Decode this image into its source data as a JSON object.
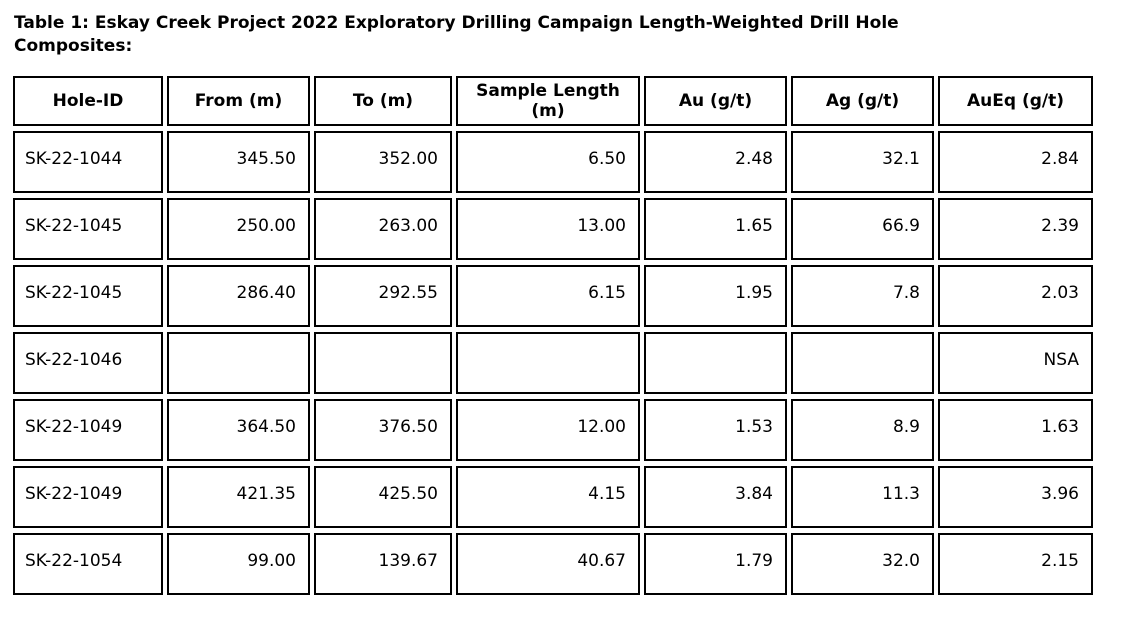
{
  "title": {
    "line1": "Table 1: Eskay Creek Project 2022 Exploratory Drilling Campaign Length-Weighted Drill Hole",
    "line2": "Composites:"
  },
  "table": {
    "headers": [
      "Hole-ID",
      "From (m)",
      "To (m)",
      "Sample Length (m)",
      "Au (g/t)",
      "Ag (g/t)",
      "AuEq (g/t)"
    ],
    "rows": [
      [
        "SK-22-1044",
        "345.50",
        "352.00",
        "6.50",
        "2.48",
        "32.1",
        "2.84"
      ],
      [
        "SK-22-1045",
        "250.00",
        "263.00",
        "13.00",
        "1.65",
        "66.9",
        "2.39"
      ],
      [
        "SK-22-1045",
        "286.40",
        "292.55",
        "6.15",
        "1.95",
        "7.8",
        "2.03"
      ],
      [
        "SK-22-1046",
        "",
        "",
        "",
        "",
        "",
        "NSA"
      ],
      [
        "SK-22-1049",
        "364.50",
        "376.50",
        "12.00",
        "1.53",
        "8.9",
        "1.63"
      ],
      [
        "SK-22-1049",
        "421.35",
        "425.50",
        "4.15",
        "3.84",
        "11.3",
        "3.96"
      ],
      [
        "SK-22-1054",
        "99.00",
        "139.67",
        "40.67",
        "1.79",
        "32.0",
        "2.15"
      ]
    ]
  },
  "colors": {
    "background": "#ffffff",
    "text": "#000000",
    "border": "#000000"
  }
}
